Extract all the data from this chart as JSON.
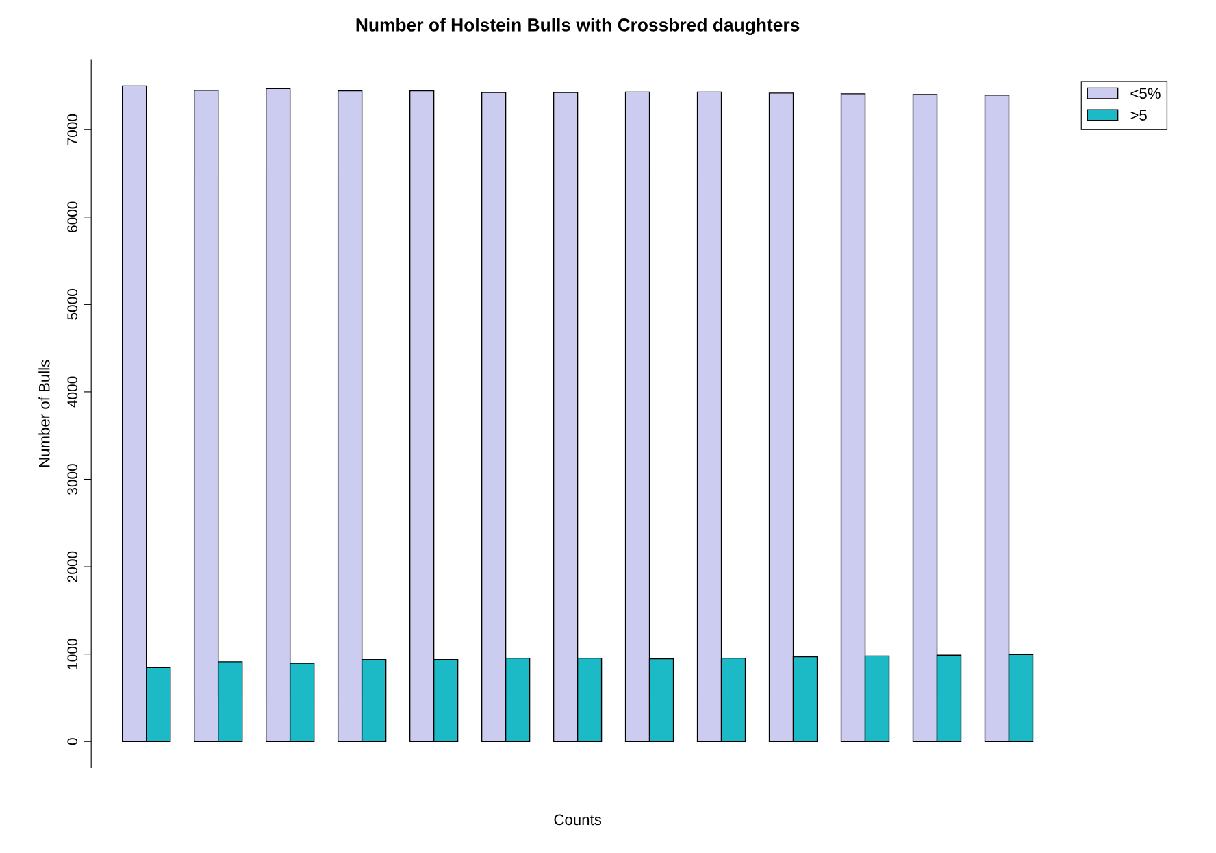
{
  "chart_data": {
    "type": "bar",
    "title": "Number of Holstein Bulls with Crossbred daughters",
    "xlabel": "Counts",
    "ylabel": "Number of Bulls",
    "categories": [
      null,
      null,
      null,
      null,
      null,
      null,
      null,
      null,
      null,
      null,
      null,
      null,
      null
    ],
    "series": [
      {
        "name": "<5%",
        "color": "#ccccf0",
        "values": [
          7500,
          7450,
          7470,
          7445,
          7445,
          7425,
          7425,
          7430,
          7430,
          7418,
          7410,
          7402,
          7395
        ]
      },
      {
        "name": ">5",
        "color": "#1bbac6",
        "values": [
          845,
          912,
          895,
          937,
          937,
          953,
          953,
          945,
          953,
          970,
          979,
          987,
          995
        ]
      }
    ],
    "ylim": [
      -300,
      7800
    ],
    "yticks": [
      0,
      1000,
      2000,
      3000,
      4000,
      5000,
      6000,
      7000
    ],
    "grid": false,
    "legend": "top right"
  }
}
